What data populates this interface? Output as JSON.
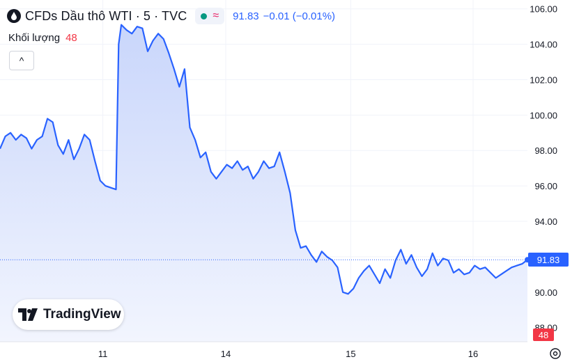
{
  "header": {
    "symbol_title": "CFDs Dầu thô WTI · 5 · TVC",
    "last_price": "91.83",
    "change": "−0.01 (−0.01%)",
    "volume_label": "Khối lượng",
    "volume_value": "48",
    "market_status_icon": "green-dot-icon",
    "delay_icon": "wave-icon"
  },
  "logo": {
    "text": "TradingView"
  },
  "colors": {
    "line": "#2962ff",
    "area_top": "#c9d6fb",
    "area_bottom": "#f2f5fe",
    "vol_up": "#6fc1b3",
    "vol_down": "#f7a5a5",
    "price_tag": "#2962ff",
    "vol_tag": "#f23645"
  },
  "chart_data": {
    "type": "area",
    "x_labels": [
      "11",
      "14",
      "15",
      "16"
    ],
    "y_ticks": [
      "106.00",
      "104.00",
      "102.00",
      "100.00",
      "98.00",
      "96.00",
      "94.00",
      "92.00",
      "90.00",
      "88.00"
    ],
    "ylim": [
      87.2,
      106.5
    ],
    "xlim": [
      0,
      100
    ],
    "last_price_tag": "91.83",
    "volume_tag": "48",
    "grid": true,
    "series": [
      {
        "x": [
          0,
          1,
          2,
          3,
          4,
          5,
          6,
          7,
          8,
          9,
          10,
          11,
          12,
          13,
          14,
          15,
          16,
          17,
          18,
          19,
          20,
          21,
          22,
          22.5,
          23,
          24,
          25,
          26,
          27,
          28,
          29,
          30,
          31,
          32,
          33,
          34,
          35,
          36,
          37,
          38,
          39,
          40,
          41,
          42,
          43,
          44,
          45,
          46,
          47,
          48,
          49,
          50,
          51,
          52,
          53,
          54,
          55,
          56,
          57,
          58,
          59,
          60,
          61,
          62,
          63,
          64,
          65,
          66,
          67,
          68,
          69,
          70,
          71,
          72,
          73,
          74,
          75,
          76,
          77,
          78,
          79,
          80,
          81,
          82,
          83,
          84,
          85,
          86,
          87,
          88,
          89,
          90,
          91,
          92,
          93,
          94,
          95,
          96,
          97,
          98,
          99,
          100
        ],
        "y": [
          98.1,
          98.8,
          99.0,
          98.6,
          98.9,
          98.7,
          98.1,
          98.6,
          98.8,
          99.8,
          99.6,
          98.3,
          97.8,
          98.6,
          97.5,
          98.1,
          98.9,
          98.6,
          97.4,
          96.3,
          96.0,
          95.9,
          95.8,
          104.0,
          105.1,
          104.8,
          104.6,
          105.0,
          104.9,
          103.6,
          104.2,
          104.6,
          104.3,
          103.5,
          102.6,
          101.6,
          102.6,
          99.3,
          98.6,
          97.6,
          97.9,
          96.8,
          96.4,
          96.8,
          97.2,
          97.0,
          97.4,
          96.9,
          97.1,
          96.4,
          96.8,
          97.4,
          97.0,
          97.1,
          97.9,
          96.8,
          95.6,
          93.5,
          92.5,
          92.6,
          92.1,
          91.7,
          92.3,
          92.0,
          91.8,
          91.4,
          90.0,
          89.9,
          90.2,
          90.8,
          91.2,
          91.5,
          91.0,
          90.5,
          91.3,
          90.8,
          91.8,
          92.4,
          91.6,
          92.1,
          91.4,
          90.9,
          91.3,
          92.2,
          91.5,
          91.9,
          91.8,
          91.1,
          91.3,
          91.0,
          91.1,
          91.5,
          91.3,
          91.4,
          91.1,
          90.8,
          91.0,
          91.2,
          91.4,
          91.5,
          91.6,
          91.83
        ]
      }
    ]
  }
}
